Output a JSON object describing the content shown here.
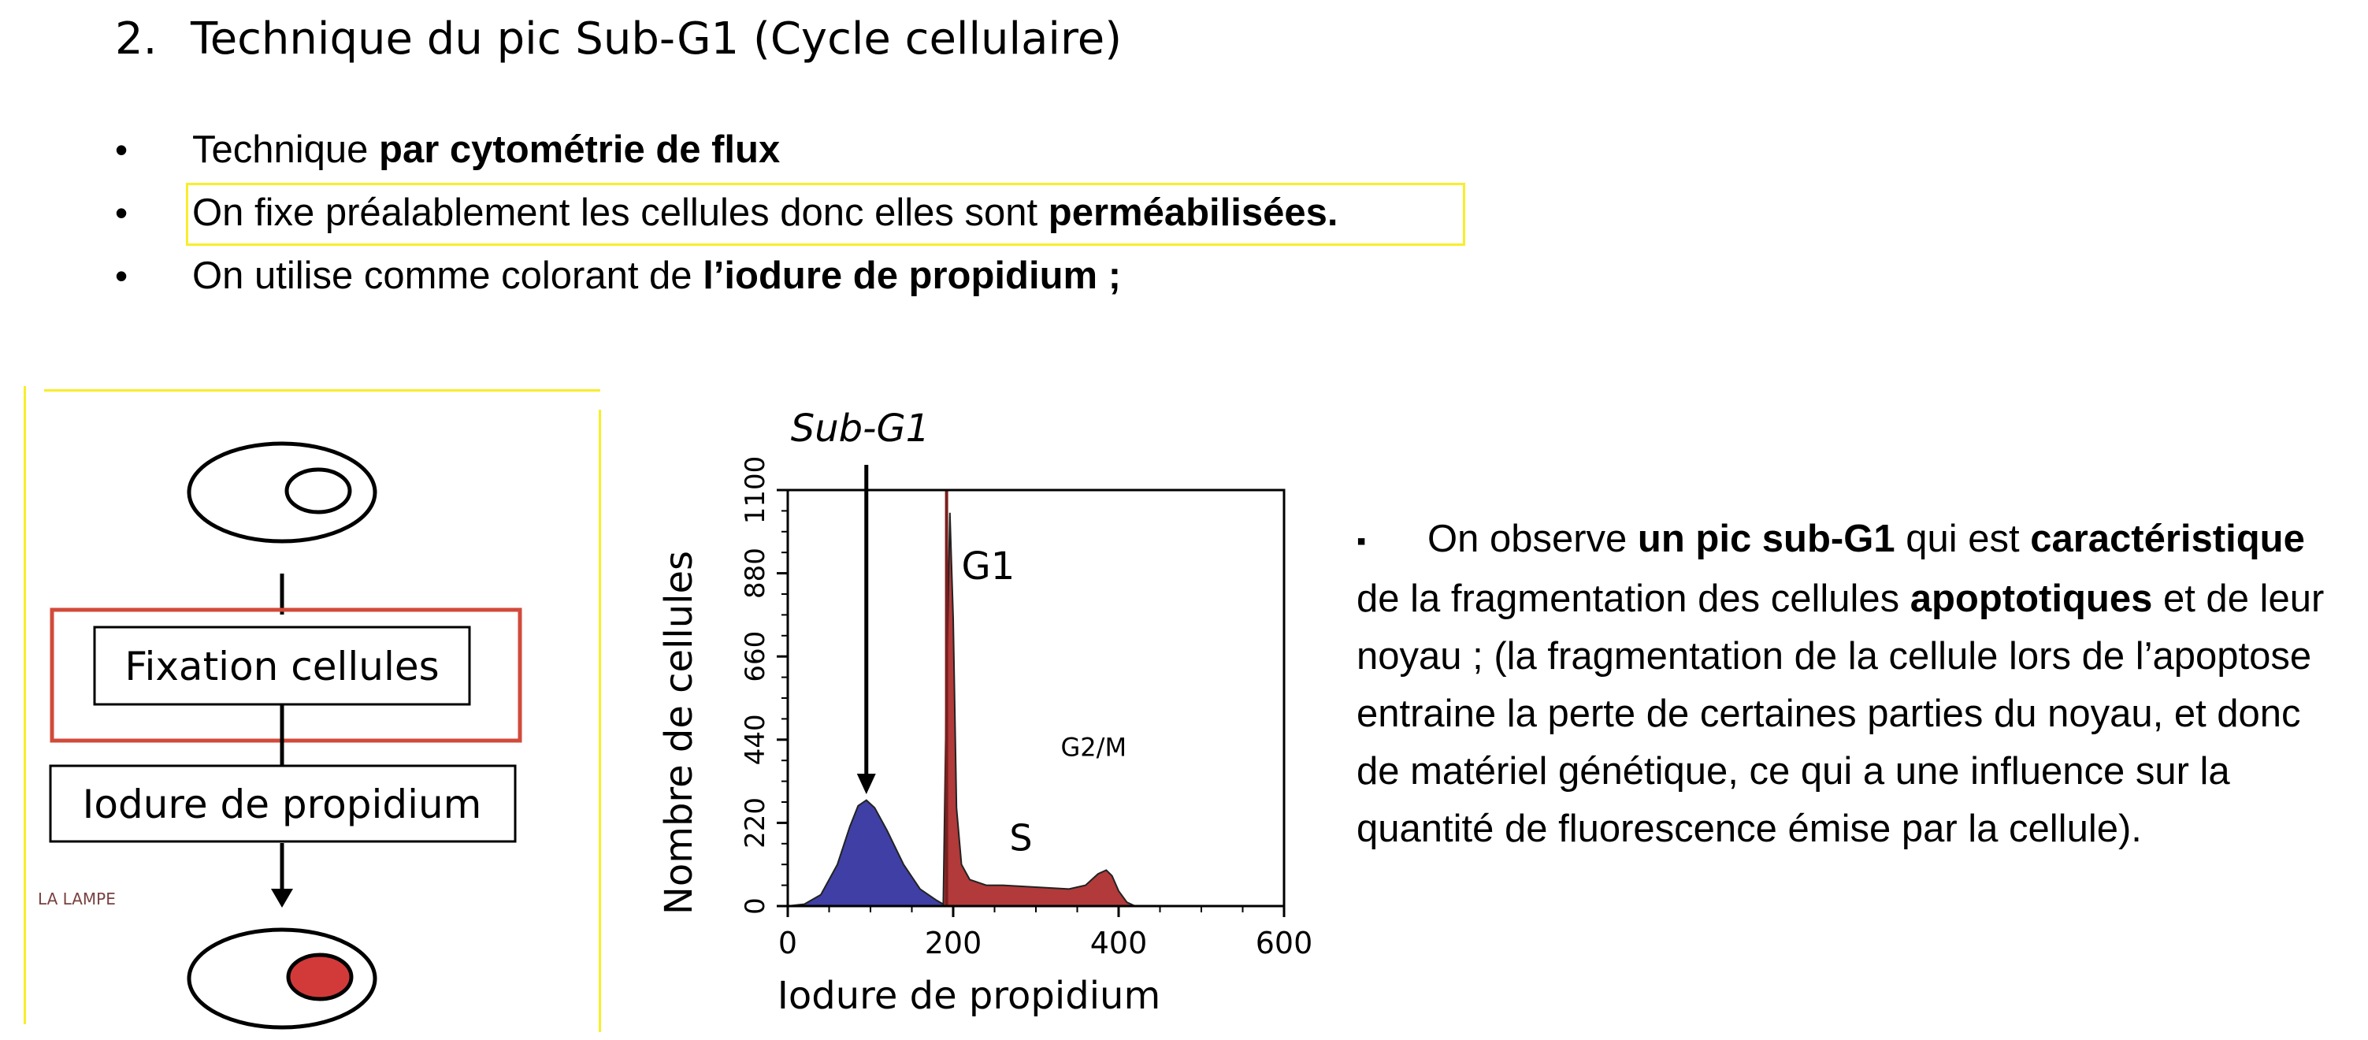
{
  "heading": {
    "number": "2.",
    "text": "Technique du pic Sub-G1 (Cycle cellulaire)"
  },
  "bullets": [
    {
      "plain": "Technique ",
      "bold": "par cytométrie de flux"
    },
    {
      "plain": "On fixe préalablement les cellules donc elles sont ",
      "bold": "perméabilisées."
    },
    {
      "plain": "On utilise comme colorant de ",
      "bold": "l’iodure de propidium ;"
    }
  ],
  "diagram": {
    "step1": "Fixation cellules",
    "step2": "Iodure de propidium",
    "watermark": "LA LAMPE"
  },
  "colors": {
    "highlight": "#f7ee2a",
    "frame_red": "#d24a3a",
    "nucleus_red": "#d23a3a",
    "subg1_fill": "#3f3fa6",
    "cycle_fill": "#b23a3a"
  },
  "chart_data": {
    "type": "area",
    "title": "Sub-G1",
    "xlabel": "Iodure de propidium",
    "ylabel": "Nombre de cellules",
    "xlim": [
      0,
      600
    ],
    "ylim": [
      0,
      1100
    ],
    "x_ticks": [
      "0",
      "200",
      "400",
      "600"
    ],
    "y_ticks": [
      "0",
      "220",
      "440",
      "660",
      "880",
      "1100"
    ],
    "annotations": [
      "G1",
      "S",
      "G2/M"
    ],
    "series": [
      {
        "name": "Sub-G1",
        "x": [
          0,
          20,
          40,
          60,
          75,
          85,
          95,
          105,
          120,
          140,
          160,
          180,
          192
        ],
        "y": [
          0,
          5,
          30,
          110,
          210,
          265,
          280,
          260,
          200,
          110,
          45,
          15,
          0
        ]
      },
      {
        "name": "G1",
        "x": [
          188,
          192,
          196,
          200,
          204,
          210,
          220,
          240,
          260,
          300,
          340,
          360,
          375,
          385,
          392,
          400,
          410,
          420
        ],
        "y": [
          0,
          600,
          1040,
          760,
          260,
          110,
          70,
          55,
          55,
          50,
          45,
          55,
          85,
          95,
          80,
          40,
          10,
          0
        ]
      }
    ]
  },
  "paragraph": {
    "bullet": "▪",
    "t1": "On observe ",
    "b1": "un pic sub-G1",
    "t2": " qui est ",
    "b2": "caractéristique",
    "t3": " de la fragmentation des cellules ",
    "b3": "apoptotiques",
    "t4": " et de leur noyau ; (la fragmentation de la cellule lors de l’apoptose entraine la perte de certaines parties du noyau, et donc de matériel génétique, ce qui a une influence sur la quantité de fluorescence émise par la cellule)."
  }
}
